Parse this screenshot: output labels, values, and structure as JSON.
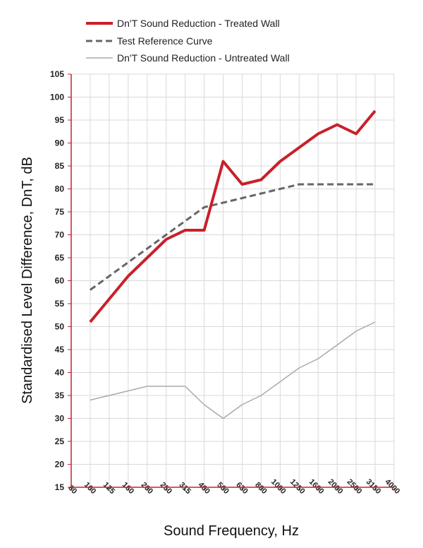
{
  "chart_data": {
    "type": "line",
    "title": "",
    "xlabel": "Sound Frequency, Hz",
    "ylabel": "Standardised Level Difference, DnT,  dB",
    "ylim": [
      15,
      105
    ],
    "yticks": [
      15,
      20,
      25,
      30,
      35,
      40,
      45,
      50,
      55,
      60,
      65,
      70,
      75,
      80,
      85,
      90,
      95,
      100,
      105
    ],
    "categories": [
      "80",
      "100",
      "125",
      "160",
      "200",
      "250",
      "315",
      "400",
      "500",
      "630",
      "800",
      "1000",
      "1250",
      "1600",
      "2000",
      "2500",
      "3150",
      "4000"
    ],
    "grid": true,
    "legend_position": "top-left",
    "series": [
      {
        "name": "Dn'T Sound Reduction - Treated Wall",
        "color": "#c8202a",
        "style": "solid-thick",
        "values": [
          null,
          51,
          56,
          61,
          65,
          69,
          71,
          71,
          86,
          81,
          82,
          86,
          89,
          92,
          94,
          92,
          97,
          null
        ]
      },
      {
        "name": "Test Reference Curve",
        "color": "#666666",
        "style": "dashed",
        "values": [
          null,
          58,
          61,
          64,
          67,
          70,
          73,
          76,
          77,
          78,
          79,
          80,
          81,
          81,
          81,
          81,
          81,
          null
        ]
      },
      {
        "name": "Dn'T Sound Reduction - Untreated Wall",
        "color": "#aaaaaa",
        "style": "solid-thin",
        "values": [
          null,
          34,
          35,
          36,
          37,
          37,
          37,
          33,
          30,
          33,
          35,
          38,
          41,
          43,
          46,
          49,
          51,
          null
        ]
      }
    ]
  }
}
